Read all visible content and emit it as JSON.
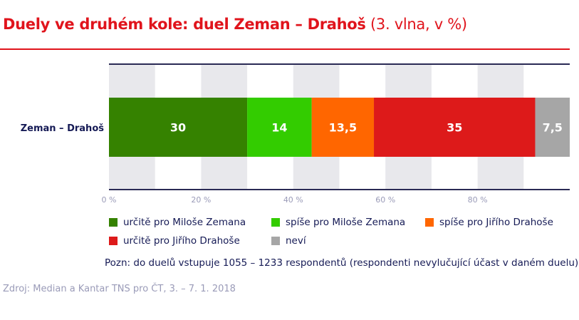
{
  "title_bold": "Duely ve druhém kole: duel Zeman – Drahoš",
  "title_sub": "(3. vlna, v %)",
  "chart_data": {
    "type": "bar",
    "orientation": "horizontal-stacked",
    "categories": [
      "Zeman – Drahoš"
    ],
    "series": [
      {
        "name": "určitě pro Miloše Zemana",
        "values": [
          30
        ],
        "label": "30",
        "color": "#358200"
      },
      {
        "name": "spíše pro Miloše Zemana",
        "values": [
          14
        ],
        "label": "14",
        "color": "#33cc00"
      },
      {
        "name": "spíše pro Jiřího Drahoše",
        "values": [
          13.5
        ],
        "label": "13,5",
        "color": "#ff6600"
      },
      {
        "name": "určitě pro Jiřího Drahoše",
        "values": [
          35
        ],
        "label": "35",
        "color": "#dd1a1a"
      },
      {
        "name": "neví",
        "values": [
          7.5
        ],
        "label": "7,5",
        "color": "#a6a6a6"
      }
    ],
    "xlim": [
      0,
      100
    ],
    "xticks": [
      "0 %",
      "20 %",
      "40 %",
      "60 %",
      "80 %"
    ],
    "grid": "alternating bands every 10 %",
    "legend": "bottom"
  },
  "note": "Pozn: do duelů vstupuje 1055 – 1233 respondentů (respondenti nevylučující účast v daném duelu)",
  "source": "Zdroj: Median a Kantar TNS pro ČT, 3. – 7. 1. 2018"
}
